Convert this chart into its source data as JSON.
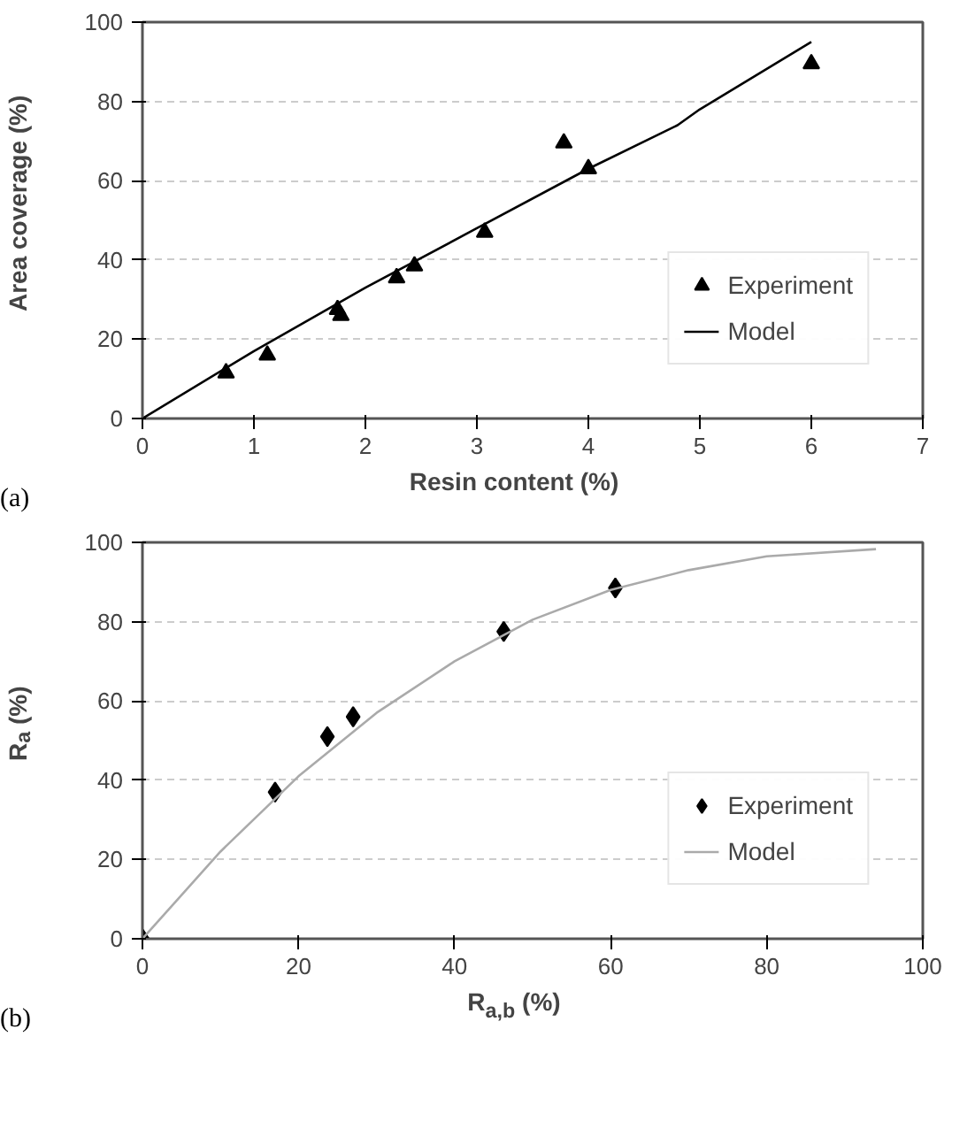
{
  "chart_data": [
    {
      "type": "scatter",
      "xlabel": "Resin content (%)",
      "ylabel": "Area coverage (%)",
      "xlim": [
        0,
        7
      ],
      "ylim": [
        0,
        100
      ],
      "xticks": [
        0,
        1,
        2,
        3,
        4,
        5,
        6,
        7
      ],
      "yticks": [
        0,
        20,
        40,
        60,
        80,
        100
      ],
      "grid": "y",
      "legend": "bottom right",
      "annotations": [
        "(a)"
      ],
      "series": [
        {
          "name": "Experiment",
          "marker": "triangle",
          "color": "#000000",
          "x": [
            0.75,
            1.12,
            1.75,
            1.78,
            2.28,
            2.44,
            3.07,
            3.78,
            4.0,
            6.0
          ],
          "values": [
            11.5,
            16,
            27.5,
            26,
            35.5,
            38.5,
            47,
            69.5,
            63,
            89.5
          ]
        },
        {
          "name": "Model",
          "type": "line",
          "color": "#000000",
          "x": [
            0,
            1,
            2,
            3,
            4,
            4.8,
            5,
            6
          ],
          "values": [
            0,
            17,
            33,
            48,
            63,
            74,
            78,
            95
          ]
        }
      ]
    },
    {
      "type": "scatter",
      "xlabel": "R$_{a,b}$ (%)",
      "ylabel": "R$_{a}$ (%)",
      "xlim": [
        0,
        100
      ],
      "ylim": [
        0,
        100
      ],
      "xticks": [
        0,
        20,
        40,
        60,
        80,
        100
      ],
      "yticks": [
        0,
        20,
        40,
        60,
        80,
        100
      ],
      "grid": "y",
      "legend": "bottom right",
      "annotations": [
        "(b)"
      ],
      "series": [
        {
          "name": "Experiment",
          "marker": "diamond",
          "color": "#000000",
          "x": [
            0,
            17,
            23.7,
            27,
            46.3,
            60.6
          ],
          "values": [
            0,
            37,
            51,
            56,
            77.5,
            88.5
          ]
        },
        {
          "name": "Model",
          "type": "line",
          "color": "#aaaaaa",
          "x": [
            0,
            10,
            20,
            30,
            40,
            50,
            60,
            70,
            80,
            94
          ],
          "values": [
            0,
            22,
            41,
            57,
            70,
            80.5,
            88,
            93,
            96.5,
            98.3
          ]
        }
      ]
    }
  ]
}
